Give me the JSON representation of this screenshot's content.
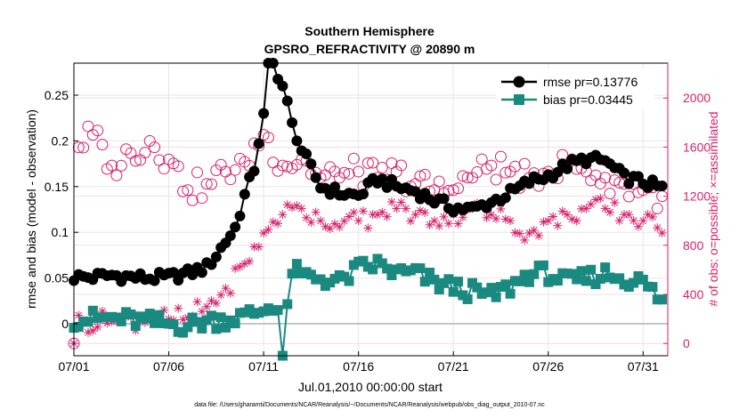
{
  "chart_data": {
    "type": "line",
    "title": "Southern Hemisphere",
    "subtitle": "GPSRO_REFRACTIVITY @ 20890 m",
    "xlabel": "Jul.01,2010 00:00:00 start",
    "ylabel": "rmse and bias (model - observation)",
    "y2label": "# of obs: o=possible; ×=assimilated",
    "footnote": "data file: /Users/gharamti/Documents/NCAR/Reanalysis/~/Documents/NCAR/Reanalysis/webpub/obs_diag_output_2010-07.nc",
    "xlim": [
      0,
      31.3
    ],
    "ylim": [
      -0.035,
      0.285
    ],
    "y2lim": [
      -100,
      2284
    ],
    "x_ticks": [
      0,
      5,
      10,
      15,
      20,
      25,
      30
    ],
    "x_tick_labels": [
      "07/01",
      "07/06",
      "07/11",
      "07/16",
      "07/21",
      "07/26",
      "07/31"
    ],
    "y_ticks": [
      0,
      0.05,
      0.1,
      0.15,
      0.2,
      0.25
    ],
    "y_tick_labels": [
      "0",
      "0.05",
      "0.1",
      "0.15",
      "0.2",
      "0.25"
    ],
    "y2_ticks": [
      0,
      400,
      800,
      1200,
      1600,
      2000
    ],
    "y2_tick_labels": [
      "0",
      "400",
      "800",
      "1200",
      "1600",
      "2000"
    ],
    "grid": true,
    "legend": "top-right",
    "colors": {
      "rmse": "#000000",
      "bias": "#1a8a80",
      "obs": "#d6216b",
      "zero": "#b0b0b0"
    },
    "series": [
      {
        "name": "rmse pr=0.13776",
        "axis": "left",
        "marker": "circle",
        "control_points": [
          [
            0,
            0.051
          ],
          [
            1,
            0.051
          ],
          [
            2,
            0.053
          ],
          [
            3,
            0.051
          ],
          [
            4,
            0.05
          ],
          [
            5,
            0.051
          ],
          [
            6,
            0.055
          ],
          [
            7,
            0.062
          ],
          [
            7.5,
            0.075
          ],
          [
            8,
            0.09
          ],
          [
            8.5,
            0.105
          ],
          [
            9,
            0.14
          ],
          [
            9.5,
            0.17
          ],
          [
            10,
            0.23
          ],
          [
            10.25,
            0.285
          ],
          [
            10.5,
            0.285
          ],
          [
            11,
            0.26
          ],
          [
            11.5,
            0.22
          ],
          [
            12,
            0.19
          ],
          [
            12.5,
            0.17
          ],
          [
            13,
            0.15
          ],
          [
            14,
            0.143
          ],
          [
            15,
            0.14
          ],
          [
            16,
            0.158
          ],
          [
            17,
            0.15
          ],
          [
            18,
            0.145
          ],
          [
            19,
            0.135
          ],
          [
            20,
            0.127
          ],
          [
            21,
            0.125
          ],
          [
            22,
            0.133
          ],
          [
            23,
            0.143
          ],
          [
            24,
            0.155
          ],
          [
            25,
            0.162
          ],
          [
            26,
            0.173
          ],
          [
            27,
            0.18
          ],
          [
            28,
            0.178
          ],
          [
            29,
            0.16
          ],
          [
            30,
            0.155
          ],
          [
            31,
            0.148
          ]
        ],
        "noise": 0.006
      },
      {
        "name": "bias pr=0.03445",
        "axis": "left",
        "marker": "square",
        "control_points": [
          [
            0,
            0.005
          ],
          [
            2,
            0.006
          ],
          [
            4,
            0.002
          ],
          [
            5,
            0.0
          ],
          [
            6,
            -0.002
          ],
          [
            7,
            0.003
          ],
          [
            8,
            0.005
          ],
          [
            9,
            0.008
          ],
          [
            10,
            0.015
          ],
          [
            10.7,
            0.025
          ],
          [
            11,
            -0.035
          ],
          [
            11.5,
            0.06
          ],
          [
            12,
            0.052
          ],
          [
            13,
            0.05
          ],
          [
            14,
            0.045
          ],
          [
            15,
            0.06
          ],
          [
            16,
            0.065
          ],
          [
            17,
            0.055
          ],
          [
            18,
            0.055
          ],
          [
            19,
            0.045
          ],
          [
            20,
            0.04
          ],
          [
            21,
            0.035
          ],
          [
            22,
            0.03
          ],
          [
            23,
            0.04
          ],
          [
            24,
            0.055
          ],
          [
            25,
            0.055
          ],
          [
            26,
            0.045
          ],
          [
            27,
            0.05
          ],
          [
            28,
            0.055
          ],
          [
            29,
            0.05
          ],
          [
            30,
            0.045
          ],
          [
            31,
            0.025
          ]
        ],
        "noise": 0.01
      },
      {
        "name": "possible",
        "axis": "right",
        "marker": "open-circle",
        "control_points": [
          [
            0,
            0
          ],
          [
            0.1,
            1600
          ],
          [
            1,
            1700
          ],
          [
            2,
            1450
          ],
          [
            3,
            1550
          ],
          [
            4,
            1650
          ],
          [
            5,
            1500
          ],
          [
            6,
            1250
          ],
          [
            7,
            1300
          ],
          [
            8,
            1400
          ],
          [
            9,
            1480
          ],
          [
            10,
            1700
          ],
          [
            11,
            1450
          ],
          [
            12,
            1500
          ],
          [
            13,
            1350
          ],
          [
            14,
            1350
          ],
          [
            15,
            1400
          ],
          [
            16,
            1350
          ],
          [
            17,
            1400
          ],
          [
            18,
            1300
          ],
          [
            19,
            1250
          ],
          [
            20,
            1250
          ],
          [
            21,
            1350
          ],
          [
            22,
            1450
          ],
          [
            23,
            1400
          ],
          [
            24,
            1350
          ],
          [
            25,
            1400
          ],
          [
            26,
            1450
          ],
          [
            27,
            1400
          ],
          [
            28,
            1350
          ],
          [
            29,
            1300
          ],
          [
            30,
            1250
          ],
          [
            31,
            1200
          ]
        ],
        "noise": 120
      },
      {
        "name": "assimilated",
        "axis": "right",
        "marker": "asterisk",
        "control_points": [
          [
            0,
            0
          ],
          [
            0.1,
            170
          ],
          [
            2,
            180
          ],
          [
            4,
            200
          ],
          [
            5,
            200
          ],
          [
            6,
            210
          ],
          [
            7,
            300
          ],
          [
            8,
            450
          ],
          [
            9,
            650
          ],
          [
            10,
            900
          ],
          [
            11,
            1050
          ],
          [
            12,
            1100
          ],
          [
            13,
            1000
          ],
          [
            14,
            950
          ],
          [
            15,
            1000
          ],
          [
            16,
            1050
          ],
          [
            17,
            1100
          ],
          [
            18,
            1050
          ],
          [
            19,
            1000
          ],
          [
            20,
            1050
          ],
          [
            21,
            1100
          ],
          [
            22,
            1050
          ],
          [
            23,
            1000
          ],
          [
            24,
            900
          ],
          [
            25,
            1000
          ],
          [
            26,
            1050
          ],
          [
            27,
            1100
          ],
          [
            28,
            1100
          ],
          [
            29,
            1050
          ],
          [
            30,
            1000
          ],
          [
            31,
            900
          ]
        ],
        "noise": 90
      }
    ]
  }
}
